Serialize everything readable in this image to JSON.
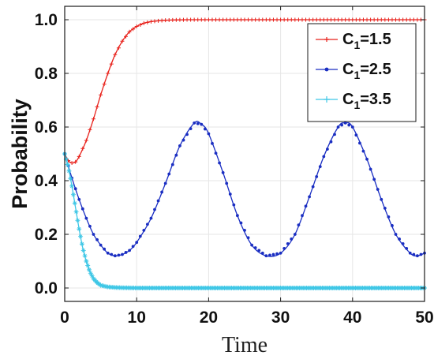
{
  "chart_data": {
    "type": "line",
    "xlabel": "Time",
    "ylabel": "Probability",
    "xlim": [
      0,
      50
    ],
    "ylim": [
      -0.05,
      1.05
    ],
    "xticks": [
      0,
      10,
      20,
      30,
      40,
      50
    ],
    "xtick_labels": [
      "0",
      "10",
      "20",
      "30",
      "40",
      "50"
    ],
    "yticks": [
      0.0,
      0.2,
      0.4,
      0.6,
      0.8,
      1.0
    ],
    "ytick_labels": [
      "0.0",
      "0.2",
      "0.4",
      "0.6",
      "0.8",
      "1.0"
    ],
    "grid": true,
    "legend_position": "top-right",
    "series": [
      {
        "name_main": "C",
        "name_sub": "1",
        "name_tail": "=1.5",
        "color": "#e8201a",
        "marker": "plus",
        "x": [
          0,
          0.5,
          1,
          1.5,
          2,
          3,
          4,
          5,
          6,
          7,
          8,
          9,
          10,
          11,
          12,
          13,
          14,
          15,
          17,
          20,
          25,
          30,
          35,
          40,
          45,
          50
        ],
        "y": [
          0.5,
          0.475,
          0.466,
          0.47,
          0.49,
          0.55,
          0.63,
          0.72,
          0.8,
          0.87,
          0.92,
          0.955,
          0.975,
          0.987,
          0.993,
          0.996,
          0.998,
          0.999,
          1.0,
          1.0,
          1.0,
          1.0,
          1.0,
          1.0,
          1.0,
          1.0
        ]
      },
      {
        "name_main": "C",
        "name_sub": "1",
        "name_tail": "=2.5",
        "color": "#1a2ec2",
        "marker": "dot",
        "x": [
          0,
          1,
          2,
          3,
          4,
          5,
          6,
          7,
          8,
          9,
          10,
          12,
          14,
          16,
          18,
          19,
          20,
          22,
          24,
          26,
          28,
          30,
          32,
          34,
          36,
          38,
          39,
          40,
          42,
          44,
          46,
          48,
          49,
          50
        ],
        "y": [
          0.5,
          0.41,
          0.33,
          0.26,
          0.2,
          0.16,
          0.13,
          0.12,
          0.125,
          0.14,
          0.17,
          0.26,
          0.39,
          0.53,
          0.615,
          0.61,
          0.575,
          0.43,
          0.27,
          0.16,
          0.12,
          0.13,
          0.2,
          0.34,
          0.49,
          0.6,
          0.615,
          0.6,
          0.48,
          0.33,
          0.2,
          0.13,
          0.12,
          0.13
        ]
      },
      {
        "name_main": "C",
        "name_sub": "1",
        "name_tail": "=3.5",
        "color": "#3fc7e6",
        "marker": "star",
        "x": [
          0,
          0.5,
          1,
          1.5,
          2,
          2.5,
          3,
          3.5,
          4,
          4.5,
          5,
          6,
          7,
          8,
          10,
          15,
          20,
          25,
          30,
          35,
          40,
          45,
          50
        ],
        "y": [
          0.5,
          0.45,
          0.38,
          0.3,
          0.22,
          0.15,
          0.1,
          0.06,
          0.035,
          0.02,
          0.01,
          0.004,
          0.002,
          0.001,
          0.0,
          0.0,
          0.0,
          0.0,
          0.0,
          0.0,
          0.0,
          0.0,
          0.0
        ]
      }
    ]
  }
}
